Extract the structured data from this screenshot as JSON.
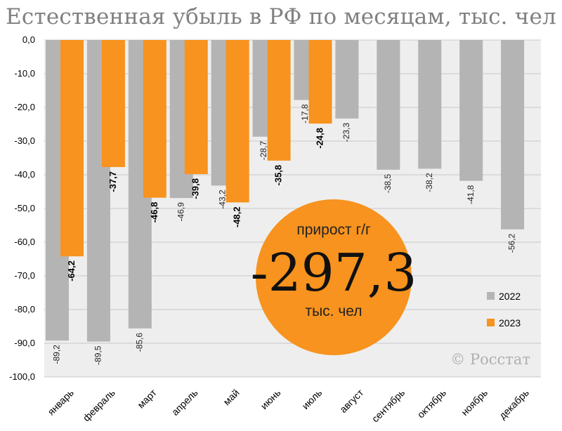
{
  "title": "Естественная убыль в РФ по месяцам, тыс. чел",
  "chart_data": {
    "type": "bar",
    "title": "Естественная убыль в РФ по месяцам, тыс. чел",
    "categories": [
      "январь",
      "февраль",
      "март",
      "апрель",
      "май",
      "июнь",
      "июль",
      "август",
      "сентябрь",
      "октябрь",
      "ноябрь",
      "декабрь"
    ],
    "series": [
      {
        "name": "2022",
        "color": "#b4b4b4",
        "values": [
          -89.2,
          -89.5,
          -85.6,
          -46.9,
          -43.2,
          -28.7,
          -17.8,
          -23.3,
          -38.5,
          -38.2,
          -41.8,
          -56.2
        ],
        "labels": [
          "-89,2",
          "-89,5",
          "-85,6",
          "-46,9",
          "-43,2",
          "-28,7",
          "-17,8",
          "-23,3",
          "-38,5",
          "-38,2",
          "-41,8",
          "-56,2"
        ]
      },
      {
        "name": "2023",
        "color": "#f7931e",
        "values": [
          -64.2,
          -37.7,
          -46.8,
          -39.8,
          -48.2,
          -35.8,
          -24.8,
          null,
          null,
          null,
          null,
          null
        ],
        "labels": [
          "-64,2",
          "-37,7",
          "-46,8",
          "-39,8",
          "-48,2",
          "-35,8",
          "-24,8",
          "",
          "",
          "",
          "",
          ""
        ]
      }
    ],
    "ylim": [
      -100,
      0
    ],
    "yticks": [
      "0,0",
      "-10,0",
      "-20,0",
      "-30,0",
      "-40,0",
      "-50,0",
      "-60,0",
      "-70,0",
      "-80,0",
      "-90,0",
      "-100,0"
    ],
    "grid": true,
    "legend_position": "bottom-right"
  },
  "callout": {
    "caption": "прирост г/г",
    "value": "-297,3",
    "unit": "тыс. чел",
    "color": "#f7931e"
  },
  "credit": "© Росстат"
}
